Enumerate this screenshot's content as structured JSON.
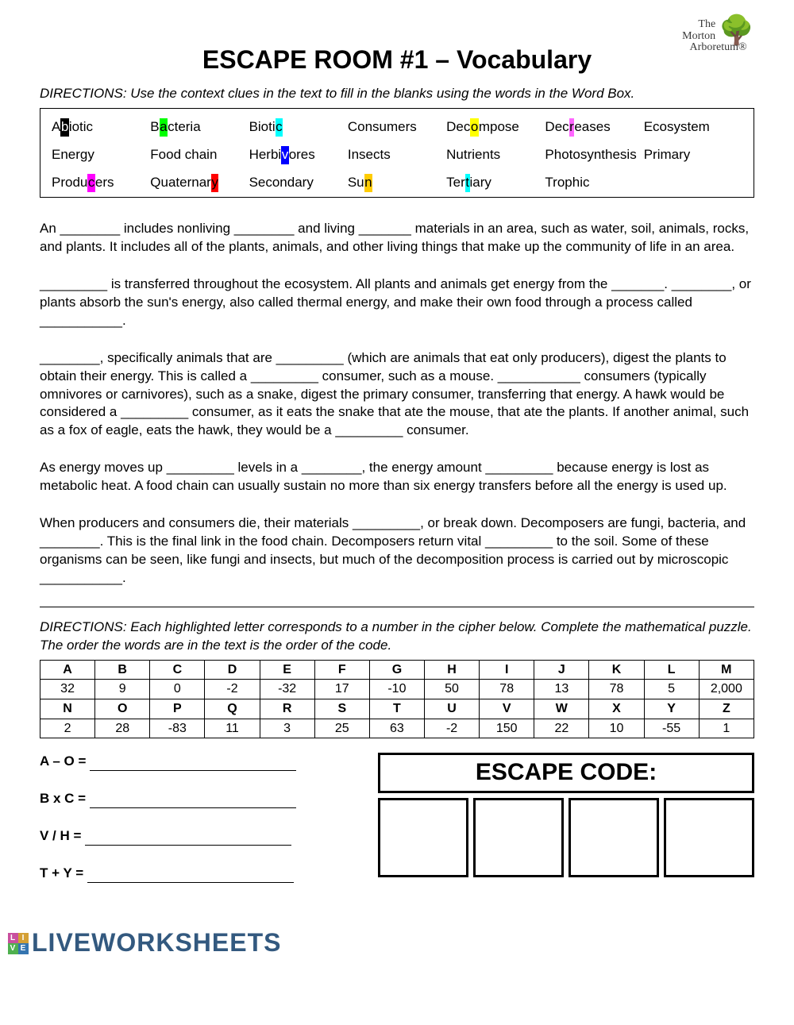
{
  "brand": {
    "line1": "The",
    "line2": "Morton",
    "line3": "Arboretum",
    "tree": "🌳",
    "reg": "®"
  },
  "title": "ESCAPE ROOM #1 – Vocabulary",
  "directions1": "DIRECTIONS: Use the context clues in the text to fill in the blanks using the words in the Word Box.",
  "wordbox": [
    {
      "pre": "A",
      "hl": "b",
      "color": "#000000",
      "fg": "#ffffff",
      "post": "iotic"
    },
    {
      "pre": "B",
      "hl": "a",
      "color": "#00ff00",
      "fg": "#000000",
      "post": "cteria"
    },
    {
      "pre": "Bioti",
      "hl": "c",
      "color": "#00ffff",
      "fg": "#000000",
      "post": ""
    },
    {
      "plain": "Consumers"
    },
    {
      "pre": "Dec",
      "hl": "o",
      "color": "#ffff00",
      "fg": "#000000",
      "post": "mpose"
    },
    {
      "pre": "Dec",
      "hl": "r",
      "color": "#ff66ff",
      "fg": "#000000",
      "post": "eases"
    },
    {
      "plain": "Ecosystem"
    },
    {
      "plain": "Energy"
    },
    {
      "plain": "Food chain"
    },
    {
      "pre": "Herbi",
      "hl": "v",
      "color": "#0000ff",
      "fg": "#ffffff",
      "post": "ores"
    },
    {
      "plain": "Insects"
    },
    {
      "plain": "Nutrients"
    },
    {
      "plain": "Photosynthesis"
    },
    {
      "plain": "Primary"
    },
    {
      "pre": "Produ",
      "hl": "c",
      "color": "#ff00ff",
      "fg": "#000000",
      "post": "ers"
    },
    {
      "pre": "Quaternar",
      "hl": "y",
      "color": "#ff0000",
      "fg": "#000000",
      "post": ""
    },
    {
      "plain": "Secondary"
    },
    {
      "pre": "Su",
      "hl": "n",
      "color": "#ffcc00",
      "fg": "#000000",
      "post": ""
    },
    {
      "pre": "Ter",
      "hl": "t",
      "color": "#00ffff",
      "fg": "#000000",
      "post": "iary"
    },
    {
      "plain": "Trophic"
    }
  ],
  "paras": {
    "p1": "An ________ includes nonliving ________ and living _______ materials in an area, such as water, soil, animals, rocks, and plants. It includes all of the plants, animals, and other living things that make up the community of life in an area.",
    "p2": "_________ is transferred throughout the ecosystem. All plants and animals get energy from the _______. ________, or plants absorb the sun's energy, also called thermal energy, and make their own food through a process called ___________.",
    "p3": "________, specifically animals that are _________ (which are animals that eat only producers), digest the plants to obtain their energy. This is called a _________ consumer, such as a mouse. ___________ consumers (typically omnivores or carnivores), such as a snake, digest the primary consumer, transferring that energy. A hawk would be considered a _________ consumer, as it eats the snake that ate the mouse, that ate the plants. If another animal, such as a fox of eagle, eats the hawk, they would be a _________ consumer.",
    "p4": "As energy moves up _________ levels in a ________, the energy amount _________ because energy is lost as metabolic heat. A food chain can usually sustain no more than six energy transfers before all the energy is used up.",
    "p5": "When producers and consumers die, their materials _________, or break down. Decomposers are fungi, bacteria, and ________. This is the final link in the food chain. Decomposers return vital _________ to the soil. Some of these organisms can be seen, like fungi and insects, but much of the decomposition process is carried out by microscopic ___________."
  },
  "directions2": "DIRECTIONS: Each highlighted letter corresponds to a number in the cipher below. Complete the mathematical puzzle. The order the words are in the text is the order of the code.",
  "cipher": {
    "row1h": [
      "A",
      "B",
      "C",
      "D",
      "E",
      "F",
      "G",
      "H",
      "I",
      "J",
      "K",
      "L",
      "M"
    ],
    "row1v": [
      "32",
      "9",
      "0",
      "-2",
      "-32",
      "17",
      "-10",
      "50",
      "78",
      "13",
      "78",
      "5",
      "2,000"
    ],
    "row2h": [
      "N",
      "O",
      "P",
      "Q",
      "R",
      "S",
      "T",
      "U",
      "V",
      "W",
      "X",
      "Y",
      "Z"
    ],
    "row2v": [
      "2",
      "28",
      "-83",
      "11",
      "3",
      "25",
      "63",
      "-2",
      "150",
      "22",
      "10",
      "-55",
      "1"
    ]
  },
  "equations": [
    "A – O =",
    "B x C =",
    "V / H =",
    "T + Y ="
  ],
  "escape_title": "ESCAPE CODE:",
  "footer": "LIVEWORKSHEETS",
  "badge_colors": [
    "#c94f9e",
    "#d4a035",
    "#4fb04f",
    "#3575b0"
  ]
}
